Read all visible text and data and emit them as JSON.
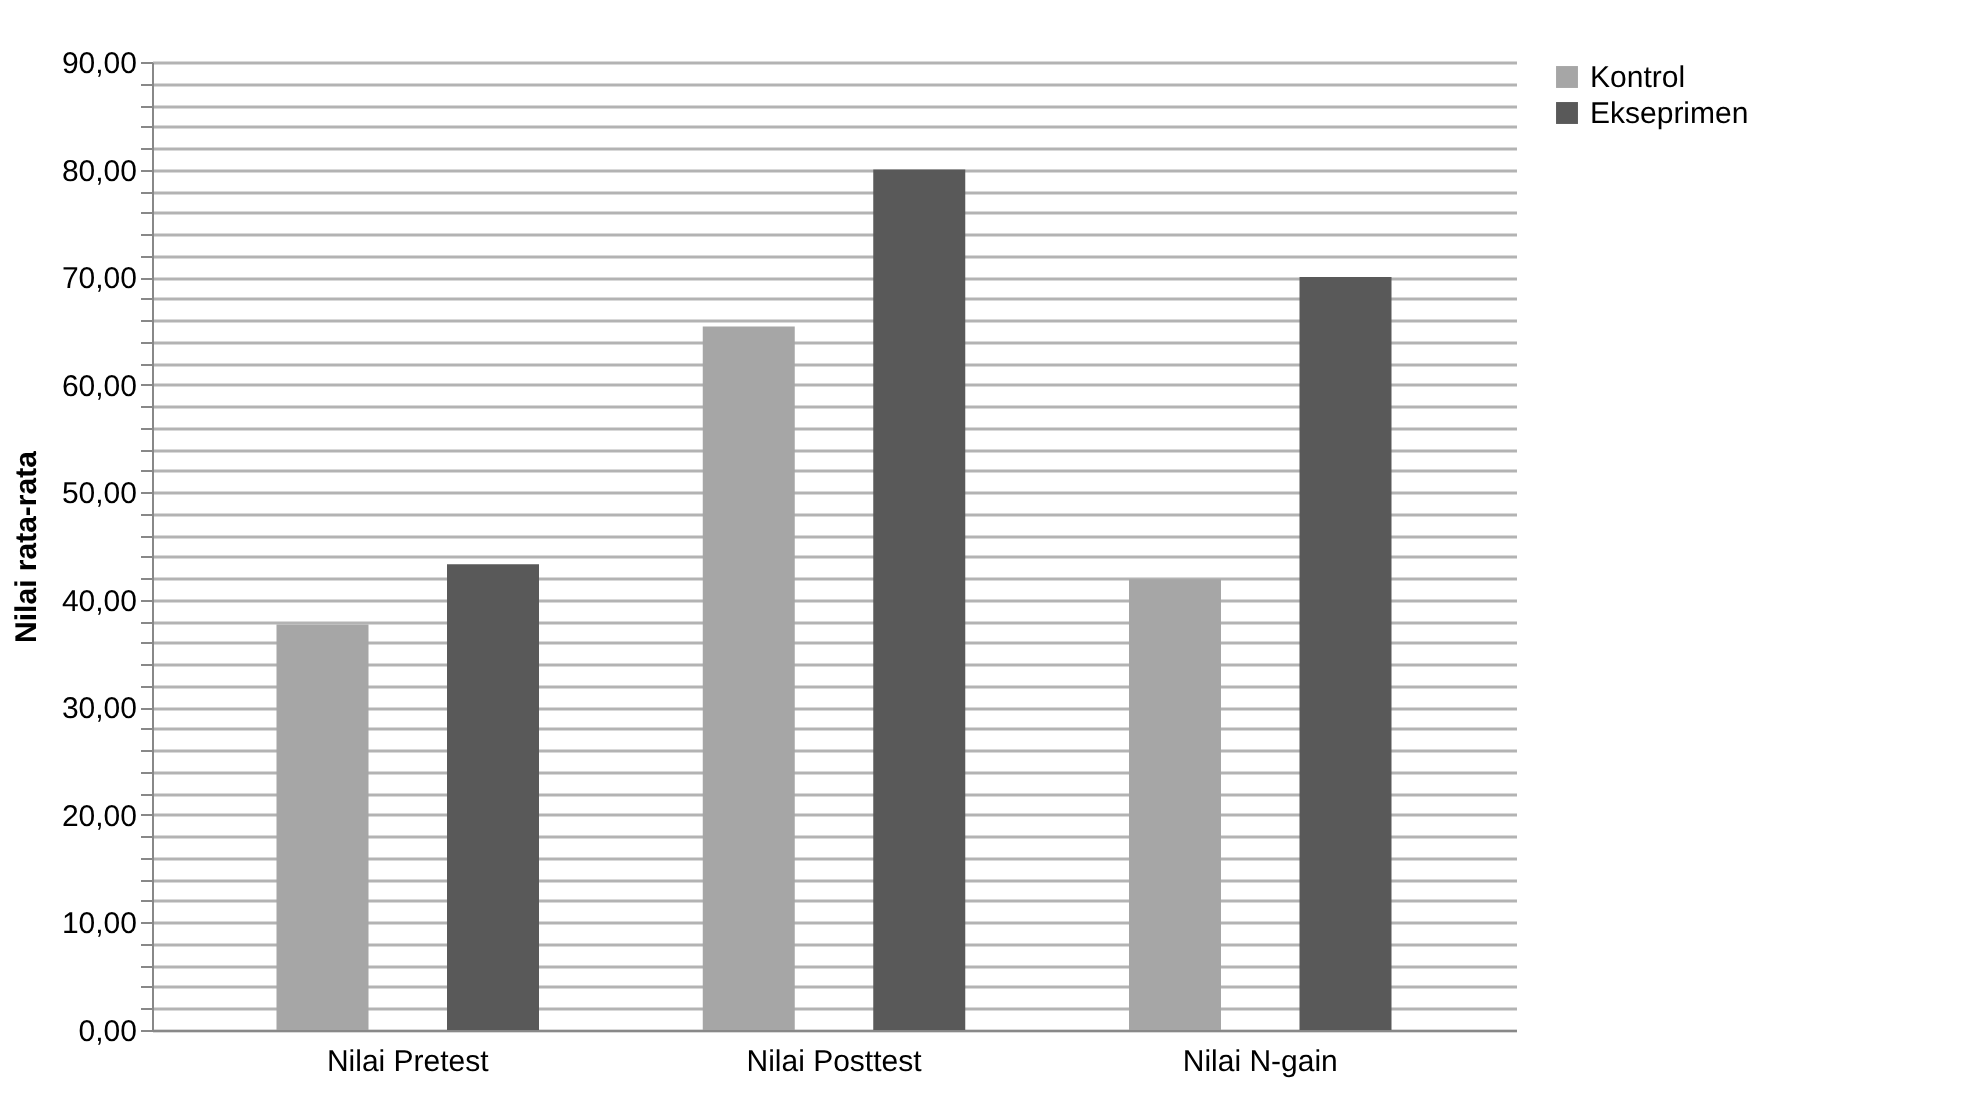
{
  "chart_data": {
    "type": "bar",
    "ylabel": "Nilai rata-rata",
    "categories": [
      "Nilai Pretest",
      "Nilai Posttest",
      "Nilai N-gain"
    ],
    "series": [
      {
        "name": "Kontrol",
        "color": "#a6a6a6",
        "values": [
          37.7,
          65.4,
          41.9
        ]
      },
      {
        "name": "Ekseprimen",
        "color": "#595959",
        "values": [
          43.3,
          80.0,
          70.0
        ]
      }
    ],
    "ylim": [
      0,
      90
    ],
    "yticks": [
      {
        "value": 0,
        "label": "0,00"
      },
      {
        "value": 2,
        "label": null
      },
      {
        "value": 4,
        "label": null
      },
      {
        "value": 6,
        "label": null
      },
      {
        "value": 8,
        "label": null
      },
      {
        "value": 10,
        "label": "10,00"
      },
      {
        "value": 12,
        "label": null
      },
      {
        "value": 14,
        "label": null
      },
      {
        "value": 16,
        "label": null
      },
      {
        "value": 18,
        "label": null
      },
      {
        "value": 20,
        "label": "20,00"
      },
      {
        "value": 22,
        "label": null
      },
      {
        "value": 24,
        "label": null
      },
      {
        "value": 26,
        "label": null
      },
      {
        "value": 28,
        "label": null
      },
      {
        "value": 30,
        "label": "30,00"
      },
      {
        "value": 32,
        "label": null
      },
      {
        "value": 34,
        "label": null
      },
      {
        "value": 36,
        "label": null
      },
      {
        "value": 38,
        "label": null
      },
      {
        "value": 40,
        "label": "40,00"
      },
      {
        "value": 42,
        "label": null
      },
      {
        "value": 44,
        "label": null
      },
      {
        "value": 46,
        "label": null
      },
      {
        "value": 48,
        "label": null
      },
      {
        "value": 50,
        "label": "50,00"
      },
      {
        "value": 52,
        "label": null
      },
      {
        "value": 54,
        "label": null
      },
      {
        "value": 56,
        "label": null
      },
      {
        "value": 58,
        "label": null
      },
      {
        "value": 60,
        "label": "60,00"
      },
      {
        "value": 62,
        "label": null
      },
      {
        "value": 64,
        "label": null
      },
      {
        "value": 66,
        "label": null
      },
      {
        "value": 68,
        "label": null
      },
      {
        "value": 70,
        "label": "70,00"
      },
      {
        "value": 72,
        "label": null
      },
      {
        "value": 74,
        "label": null
      },
      {
        "value": 76,
        "label": null
      },
      {
        "value": 78,
        "label": null
      },
      {
        "value": 80,
        "label": "80,00"
      },
      {
        "value": 82,
        "label": null
      },
      {
        "value": 84,
        "label": null
      },
      {
        "value": 86,
        "label": null
      },
      {
        "value": 88,
        "label": null
      },
      {
        "value": 90,
        "label": "90,00"
      }
    ],
    "grid": true,
    "legend": "right"
  }
}
